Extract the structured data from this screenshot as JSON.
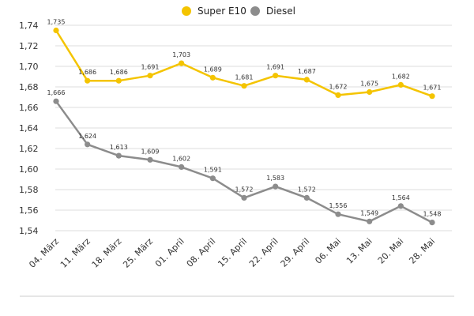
{
  "chart_data": {
    "type": "line",
    "categories": [
      "04. März",
      "11. März",
      "18. März",
      "25. März",
      "01. April",
      "08. April",
      "15. April",
      "22. April",
      "29. April",
      "06. Mai",
      "13. Mai",
      "20. Mai",
      "28. Mai"
    ],
    "series": [
      {
        "name": "Super E10",
        "color": "#f4c400",
        "values": [
          1.735,
          1.686,
          1.686,
          1.691,
          1.703,
          1.689,
          1.681,
          1.691,
          1.687,
          1.672,
          1.675,
          1.682,
          1.671
        ],
        "labels": [
          "1,735",
          "1,686",
          "1,686",
          "1,691",
          "1,703",
          "1,689",
          "1,681",
          "1,691",
          "1,687",
          "1,672",
          "1,675",
          "1,682",
          "1,671"
        ]
      },
      {
        "name": "Diesel",
        "color": "#8c8c8c",
        "values": [
          1.666,
          1.624,
          1.613,
          1.609,
          1.602,
          1.591,
          1.572,
          1.583,
          1.572,
          1.556,
          1.549,
          1.564,
          1.548
        ],
        "labels": [
          "1,666",
          "1,624",
          "1,613",
          "1,609",
          "1,602",
          "1,591",
          "1,572",
          "1,583",
          "1,572",
          "1,556",
          "1,549",
          "1,564",
          "1,548"
        ]
      }
    ],
    "y_ticks": [
      1.54,
      1.56,
      1.58,
      1.6,
      1.62,
      1.64,
      1.66,
      1.68,
      1.7,
      1.72,
      1.74
    ],
    "y_tick_labels": [
      "1,54",
      "1,56",
      "1,58",
      "1,60",
      "1,62",
      "1,64",
      "1,66",
      "1,68",
      "1,70",
      "1,72",
      "1,74"
    ],
    "ylim": [
      1.53,
      1.745
    ],
    "grid": true,
    "legend_position": "top-center",
    "title": "",
    "xlabel": "",
    "ylabel": ""
  }
}
